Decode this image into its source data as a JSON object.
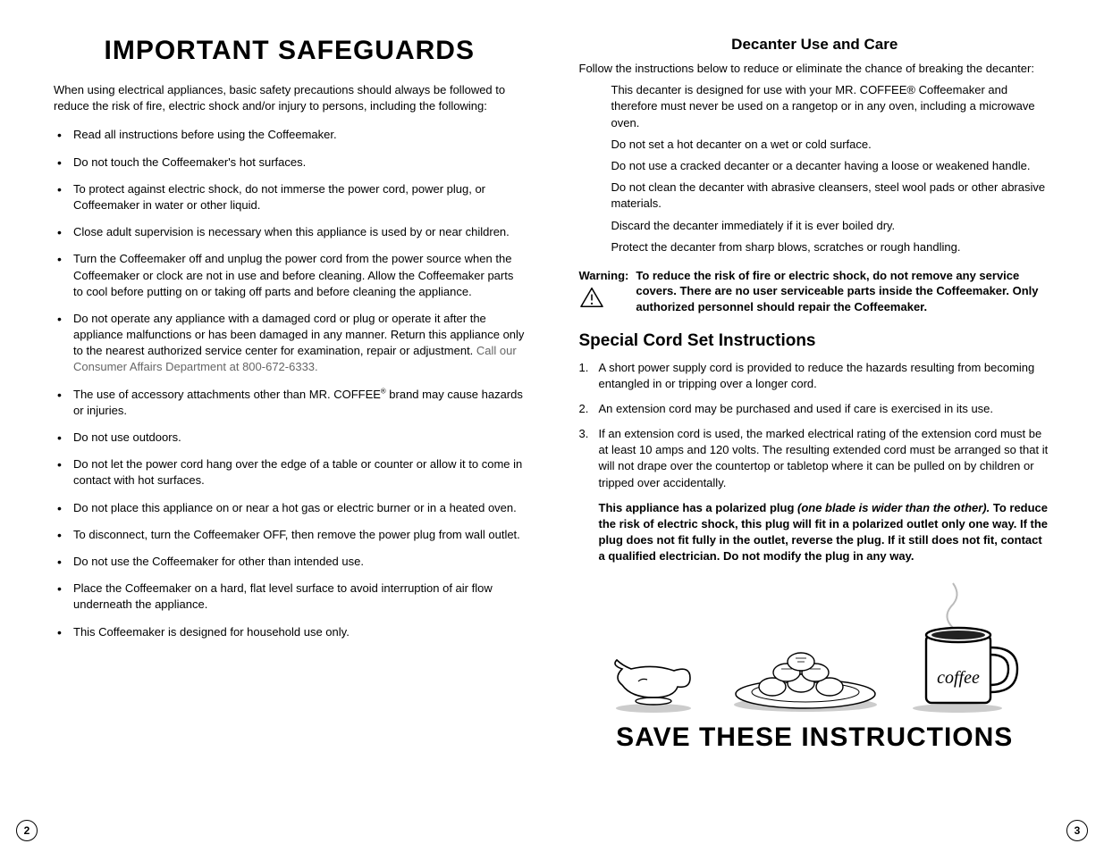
{
  "left": {
    "title": "IMPORTANT SAFEGUARDS",
    "intro": "When using electrical appliances, basic safety precautions should always be followed to reduce the risk of fire, electric shock and/or injury to persons, including the following:",
    "bullets": [
      {
        "text": "Read all instructions before using the Coffeemaker."
      },
      {
        "text": "Do not touch the Coffeemaker's hot surfaces."
      },
      {
        "text": "To protect against electric shock, do not immerse the power cord, power plug, or Coffeemaker in water or other liquid."
      },
      {
        "text": "Close adult supervision is necessary when this appliance is used by or near children."
      },
      {
        "text": "Turn the Coffeemaker off and unplug the power cord from the power source when the Coffeemaker or clock are not in use and before cleaning. Allow the Coffeemaker parts to cool before putting on or taking off parts and before cleaning the appliance."
      },
      {
        "text": "Do not operate any appliance with a damaged cord or plug or operate it after the appliance malfunctions or has been damaged in any manner. Return this appliance only to the nearest authorized service center for examination, repair or adjustment.",
        "muted": " Call our Consumer Affairs Department at 800-672-6333."
      },
      {
        "html": "The use of accessory attachments other than MR. COFFEE<sup>®</sup> brand may cause hazards or injuries."
      },
      {
        "text": "Do not use outdoors."
      },
      {
        "text": "Do not let the power cord hang over the edge of a table or counter or allow it to come in contact with hot surfaces."
      },
      {
        "text": "Do not place this appliance on or near a hot gas or electric burner or in a heated oven."
      },
      {
        "text": "To disconnect, turn the Coffeemaker OFF, then remove the power plug from wall outlet."
      },
      {
        "text": "Do not use the Coffeemaker for other than intended use."
      },
      {
        "text": "Place the Coffeemaker on a hard, flat level surface to avoid interruption of air flow underneath the appliance."
      },
      {
        "text": "This Coffeemaker is designed for household use only."
      }
    ],
    "page_number": "2"
  },
  "right": {
    "decanter_heading": "Decanter Use and Care",
    "decanter_intro": "Follow the instructions below to reduce or eliminate the chance of breaking the decanter:",
    "decanter_items": [
      "This decanter is designed for use with your MR. COFFEE® Coffeemaker and therefore must never be used on a rangetop or in any oven, including a microwave oven.",
      "Do not set a hot decanter on a wet or cold surface.",
      "Do not use a cracked decanter or a decanter having a loose or weakened handle.",
      "Do not clean the decanter with abrasive cleansers, steel wool pads or other abrasive materials.",
      "Discard the decanter immediately if it is ever boiled dry.",
      "Protect the decanter from sharp blows, scratches or rough handling."
    ],
    "warning_label": "Warning:",
    "warning_text": "To reduce the risk of fire or electric shock, do not remove any service covers. There are no user serviceable parts inside the Coffeemaker. Only authorized personnel should repair the Coffeemaker.",
    "cord_heading": "Special Cord Set Instructions",
    "cord_items": [
      "A short power supply cord is provided to reduce the hazards resulting from becoming entangled in or tripping over a longer cord.",
      "An extension cord may be purchased and used if care is exercised in its use.",
      "If an extension cord is used, the marked electrical rating of the extension cord must be at least 10 amps and 120 volts. The resulting extended cord must be arranged so that it will not drape over the countertop or tabletop where it can be pulled on by children or tripped over accidentally."
    ],
    "polarized_lead": "This appliance has a polarized plug ",
    "polarized_ital": "(one blade is wider than the other).",
    "polarized_rest": " To reduce the risk of electric shock, this plug will fit in a polarized outlet only one way. If the plug does not fit fully in the outlet, reverse the plug. If it still does not fit, contact a qualified electrician. Do not modify the plug in any way.",
    "save_title": "SAVE THESE INSTRUCTIONS",
    "mug_label": "coffee",
    "page_number": "3"
  },
  "colors": {
    "text": "#000000",
    "muted": "#666666",
    "background": "#ffffff",
    "shadow": "#cccccc"
  },
  "typography": {
    "body_fontsize": 13,
    "big_title_fontsize": 30,
    "subheading_fontsize": 17,
    "section_heading_fontsize": 19
  }
}
